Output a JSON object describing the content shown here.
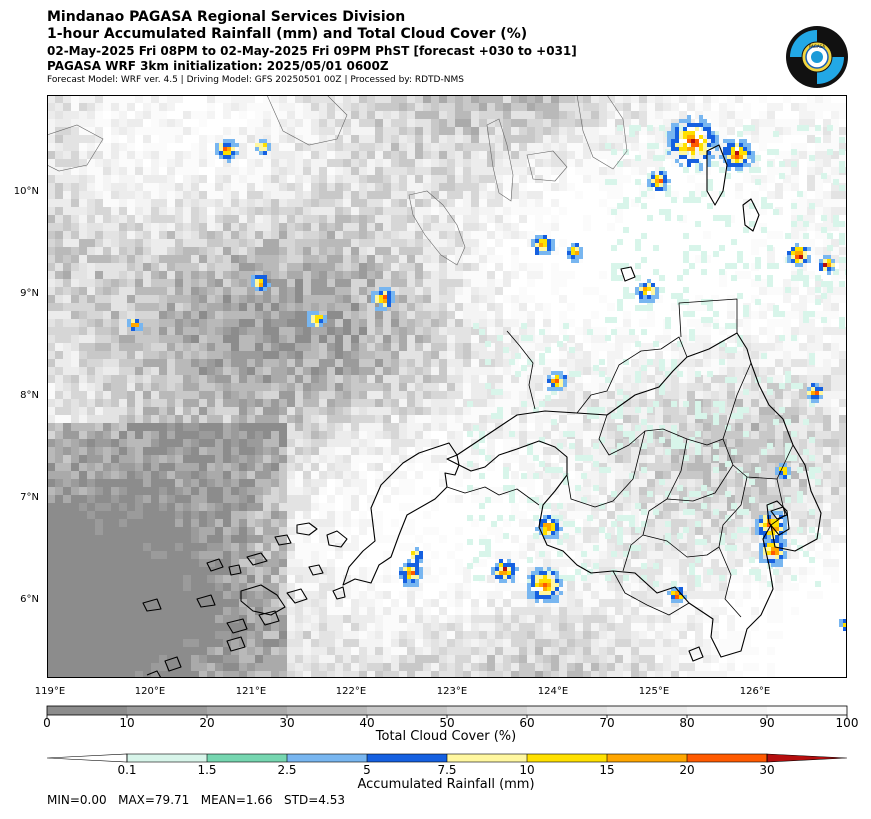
{
  "header": {
    "line1": "Mindanao PAGASA Regional Services Division",
    "line2": "1-hour Accumulated Rainfall (mm) and Total Cloud Cover (%)",
    "line3": "02-May-2025 Fri 08PM to 02-May-2025 Fri 09PM PhST [forecast +030 to +031]",
    "line4": "PAGASA WRF 3km initialization: 2025/05/01 0600Z",
    "line5": "Forecast Model: WRF ver. 4.5 | Driving Model: GFS 20250501 00Z | Processed by: RDTD-NMS"
  },
  "logo": {
    "name": "pagasa-logo",
    "label": "PAGASA"
  },
  "map": {
    "lon_range": [
      119,
      127
    ],
    "lat_range": [
      5.2,
      10.95
    ],
    "lat_ticks": [
      "10°N",
      "9°N",
      "8°N",
      "7°N",
      "6°N"
    ],
    "lon_ticks": [
      "119°E",
      "120°E",
      "121°E",
      "122°E",
      "123°E",
      "124°E",
      "125°E",
      "126°E"
    ]
  },
  "cloud_colorbar": {
    "label": "Total Cloud Cover (%)",
    "ticks": [
      "0",
      "10",
      "20",
      "30",
      "40",
      "50",
      "60",
      "70",
      "80",
      "90",
      "100"
    ],
    "colors": [
      "#8c8c8c",
      "#9b9b9b",
      "#aaaaaa",
      "#b9b9b9",
      "#c8c8c8",
      "#d6d6d6",
      "#e3e3e3",
      "#ececec",
      "#f4f4f4",
      "#fbfbfb"
    ]
  },
  "rain_colorbar": {
    "label": "Accumulated Rainfall (mm)",
    "ticks": [
      "0.1",
      "1.5",
      "2.5",
      "5",
      "7.5",
      "10",
      "15",
      "20",
      "30"
    ],
    "colors": [
      "#ffffff",
      "#d8f5ea",
      "#76d6b0",
      "#78b6f0",
      "#1560e0",
      "#fff7a0",
      "#ffe000",
      "#ffa600",
      "#ff5a00",
      "#b50e0e"
    ]
  },
  "stats": {
    "text": "MIN=0.00   MAX=79.71   MEAN=1.66   STD=4.53"
  }
}
